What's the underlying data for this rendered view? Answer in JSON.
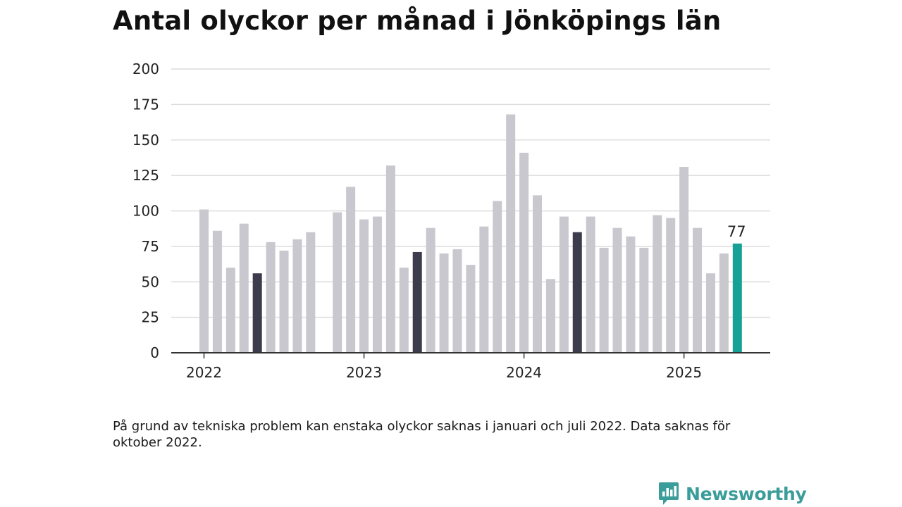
{
  "page": {
    "title": "Antal olyckor per månad i Jönköpings län",
    "note": "På grund av tekniska problem kan enstaka olyckor saknas i januari och juli 2022. Data saknas för oktober 2022.",
    "brand": "Newsworthy"
  },
  "colors": {
    "bar_default": "#c9c8cf",
    "bar_highlight": "#3d3c4c",
    "bar_latest": "#16a196",
    "grid": "#dcdcdc",
    "axis": "#333333",
    "brand": "#3a9d99"
  },
  "chart_data": {
    "type": "bar",
    "title": "Antal olyckor per månad i Jönköpings län",
    "xlabel": "",
    "ylabel": "",
    "ylim": [
      0,
      200
    ],
    "yticks": [
      0,
      25,
      50,
      75,
      100,
      125,
      150,
      175,
      200
    ],
    "xtick_labels": [
      {
        "label": "2022",
        "month": "2022-01"
      },
      {
        "label": "2023",
        "month": "2023-01"
      },
      {
        "label": "2024",
        "month": "2024-01"
      },
      {
        "label": "2025",
        "month": "2025-01"
      }
    ],
    "grid": true,
    "months": [
      "2022-01",
      "2022-02",
      "2022-03",
      "2022-04",
      "2022-05",
      "2022-06",
      "2022-07",
      "2022-08",
      "2022-09",
      "2022-10",
      "2022-11",
      "2022-12",
      "2023-01",
      "2023-02",
      "2023-03",
      "2023-04",
      "2023-05",
      "2023-06",
      "2023-07",
      "2023-08",
      "2023-09",
      "2023-10",
      "2023-11",
      "2023-12",
      "2024-01",
      "2024-02",
      "2024-03",
      "2024-04",
      "2024-05",
      "2024-06",
      "2024-07",
      "2024-08",
      "2024-09",
      "2024-10",
      "2024-11",
      "2024-12",
      "2025-01",
      "2025-02",
      "2025-03",
      "2025-04",
      "2025-05",
      "2025-06"
    ],
    "values": [
      101,
      86,
      60,
      91,
      56,
      78,
      72,
      80,
      85,
      null,
      99,
      117,
      94,
      96,
      132,
      60,
      71,
      88,
      70,
      73,
      62,
      89,
      107,
      168,
      141,
      111,
      52,
      96,
      85,
      96,
      74,
      88,
      82,
      74,
      97,
      95,
      131,
      88,
      56,
      70,
      77,
      null
    ],
    "highlight_months": [
      "2022-05",
      "2023-05",
      "2024-05"
    ],
    "latest_month": "2025-05",
    "data_labels": [
      {
        "month": "2025-05",
        "text": "77"
      }
    ]
  }
}
